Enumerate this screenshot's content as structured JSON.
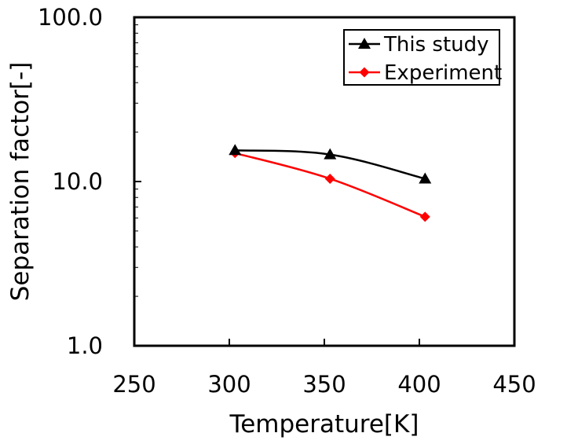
{
  "chart_data": {
    "type": "line",
    "title": "",
    "xlabel": "Temperature[K]",
    "ylabel": "Separation factor[-]",
    "xlim": [
      250,
      450
    ],
    "xticks": [
      250,
      300,
      350,
      400,
      450
    ],
    "xtick_labels": [
      "250",
      "300",
      "350",
      "400",
      "450"
    ],
    "ylim": [
      1,
      100
    ],
    "yscale": "log",
    "yticks": [
      1,
      10,
      100
    ],
    "ytick_labels": [
      "1.0",
      "10.0",
      "100.0"
    ],
    "grid": false,
    "legend_position": "top-right",
    "series": [
      {
        "name": "This study",
        "color": "#000000",
        "marker": "triangle",
        "smooth": true,
        "x": [
          303,
          353,
          403
        ],
        "y": [
          15.5,
          14.6,
          10.4
        ]
      },
      {
        "name": "Experiment",
        "color": "#ff0000",
        "marker": "diamond",
        "smooth": true,
        "x": [
          303,
          353,
          403
        ],
        "y": [
          14.9,
          10.4,
          6.1
        ]
      }
    ]
  }
}
